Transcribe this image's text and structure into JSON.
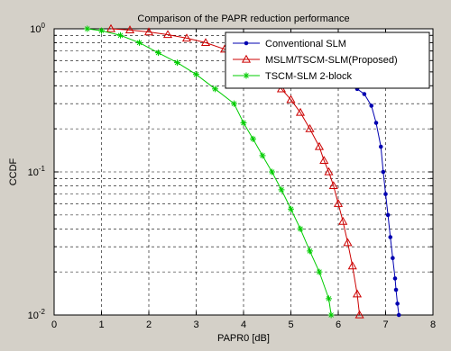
{
  "chart_data": {
    "type": "line",
    "title": "Comparison of the PAPR reduction performance",
    "xlabel": "PAPR0 [dB]",
    "ylabel": "CCDF",
    "xlim": [
      0,
      8
    ],
    "ylim": [
      0.01,
      1
    ],
    "yscale": "log",
    "grid": true,
    "legend_position": "top-right",
    "x_ticks": [
      "0",
      "1",
      "2",
      "3",
      "4",
      "5",
      "6",
      "7",
      "8"
    ],
    "y_ticks": [
      {
        "value": 1,
        "base": "10",
        "exp": "0"
      },
      {
        "value": 0.1,
        "base": "10",
        "exp": "-1"
      },
      {
        "value": 0.01,
        "base": "10",
        "exp": "-2"
      }
    ],
    "series": [
      {
        "name": "Conventional SLM",
        "color": "#0000b0",
        "marker": "dot",
        "x": [
          4.85,
          5.0,
          5.2,
          5.4,
          5.6,
          5.8,
          6.0,
          6.2,
          6.4,
          6.55,
          6.7,
          6.8,
          6.9,
          6.95,
          7.0,
          7.05,
          7.1,
          7.15,
          7.2,
          7.22,
          7.25,
          7.28
        ],
        "y": [
          0.92,
          0.85,
          0.77,
          0.68,
          0.6,
          0.52,
          0.46,
          0.42,
          0.38,
          0.35,
          0.29,
          0.22,
          0.15,
          0.1,
          0.07,
          0.05,
          0.035,
          0.025,
          0.018,
          0.015,
          0.012,
          0.01
        ]
      },
      {
        "name": "MSLM/TSCM-SLM(Proposed)",
        "color": "#cc0000",
        "marker": "triangle",
        "x": [
          1.2,
          1.6,
          2.0,
          2.4,
          2.8,
          3.2,
          3.6,
          4.0,
          4.4,
          4.6,
          4.8,
          5.0,
          5.2,
          5.4,
          5.6,
          5.7,
          5.8,
          5.9,
          6.0,
          6.1,
          6.2,
          6.3,
          6.4,
          6.45
        ],
        "y": [
          1.0,
          0.98,
          0.95,
          0.91,
          0.86,
          0.8,
          0.72,
          0.62,
          0.52,
          0.44,
          0.38,
          0.32,
          0.26,
          0.2,
          0.15,
          0.12,
          0.1,
          0.08,
          0.06,
          0.045,
          0.032,
          0.022,
          0.014,
          0.01
        ]
      },
      {
        "name": "TSCM-SLM 2-block",
        "color": "#00cc00",
        "marker": "star",
        "x": [
          0.7,
          1.0,
          1.4,
          1.8,
          2.2,
          2.6,
          3.0,
          3.4,
          3.8,
          4.0,
          4.2,
          4.4,
          4.6,
          4.8,
          5.0,
          5.2,
          5.4,
          5.6,
          5.8,
          5.85
        ],
        "y": [
          1.0,
          0.97,
          0.9,
          0.8,
          0.68,
          0.58,
          0.48,
          0.38,
          0.3,
          0.22,
          0.17,
          0.13,
          0.1,
          0.075,
          0.055,
          0.04,
          0.028,
          0.02,
          0.013,
          0.01
        ]
      }
    ]
  }
}
